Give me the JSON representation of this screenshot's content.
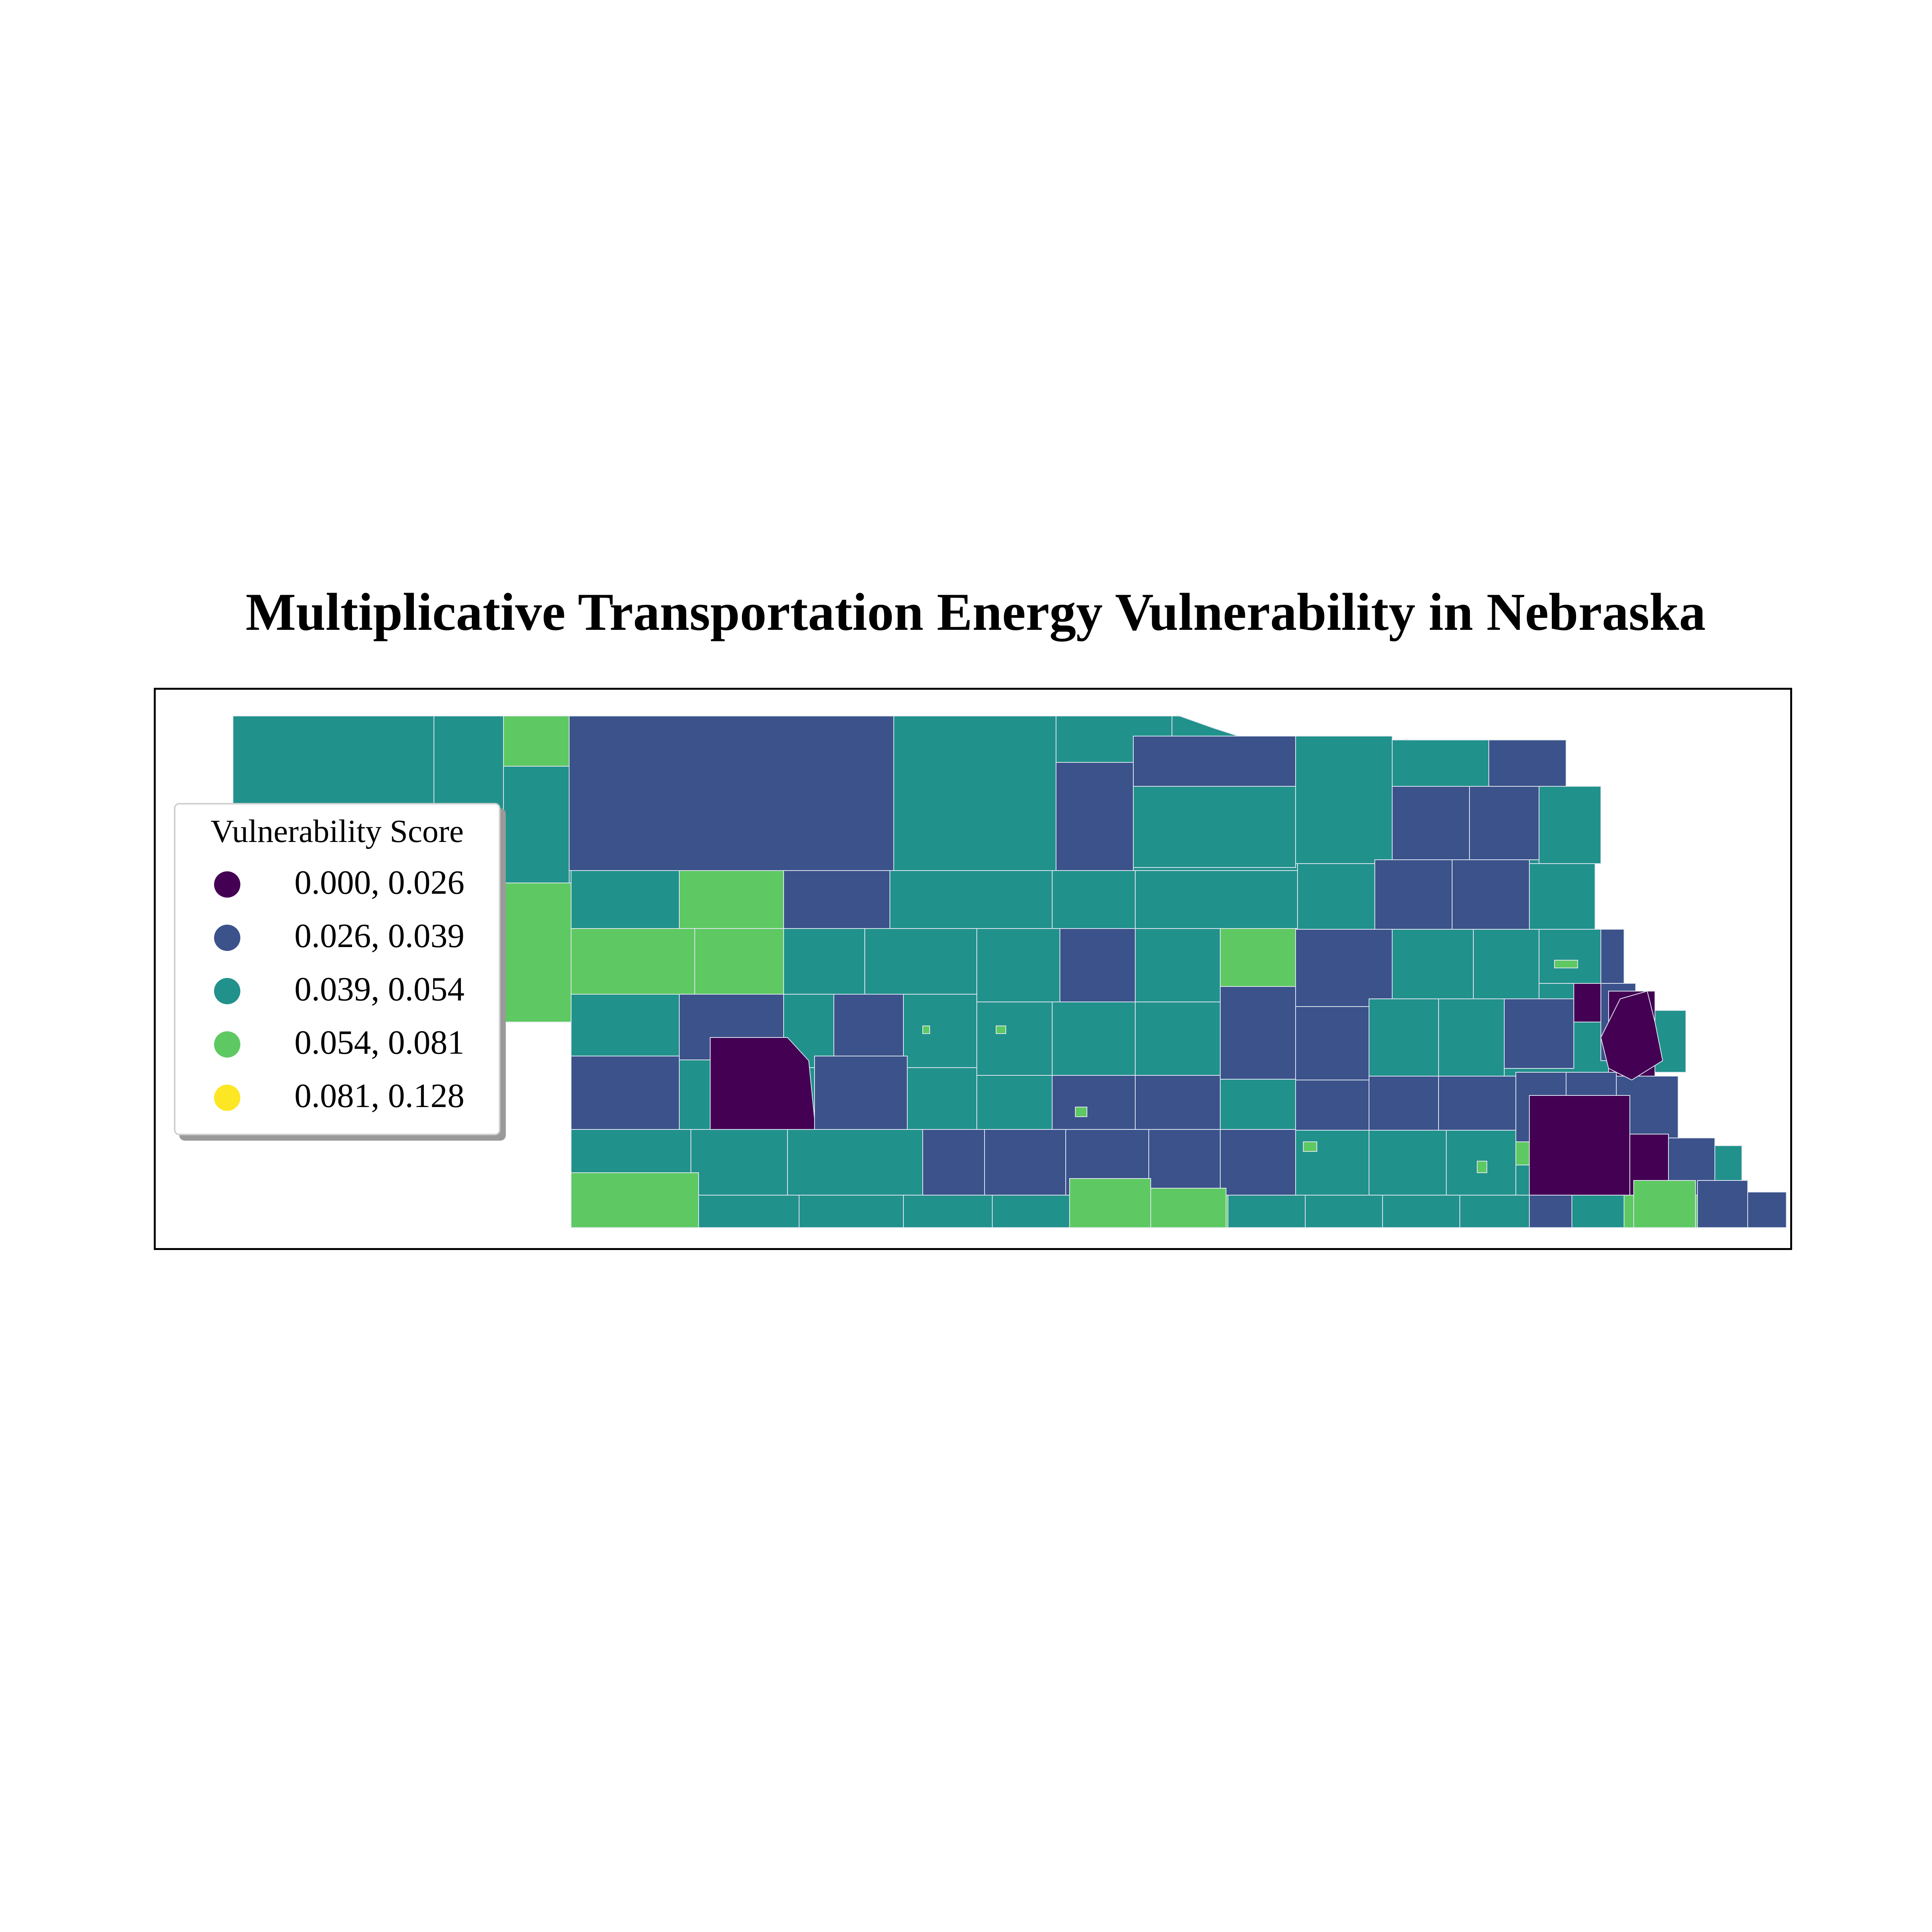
{
  "title": "Multiplicative Transportation Energy Vulnerability in Nebraska",
  "legend": {
    "title": "Vulnerability Score",
    "items": [
      {
        "label": "0.000, 0.026",
        "color": "#440154"
      },
      {
        "label": "0.026, 0.039",
        "color": "#3b528b"
      },
      {
        "label": "0.039, 0.054",
        "color": "#21918c"
      },
      {
        "label": "0.054, 0.081",
        "color": "#5ec962"
      },
      {
        "label": "0.081, 0.128",
        "color": "#fde725"
      }
    ]
  },
  "colors": {
    "class_1": "#440154",
    "class_2": "#3b528b",
    "class_3": "#21918c",
    "class_4": "#5ec962",
    "class_5": "#fde725",
    "boundary": "#dfe6ef",
    "frame": "#000000"
  }
}
